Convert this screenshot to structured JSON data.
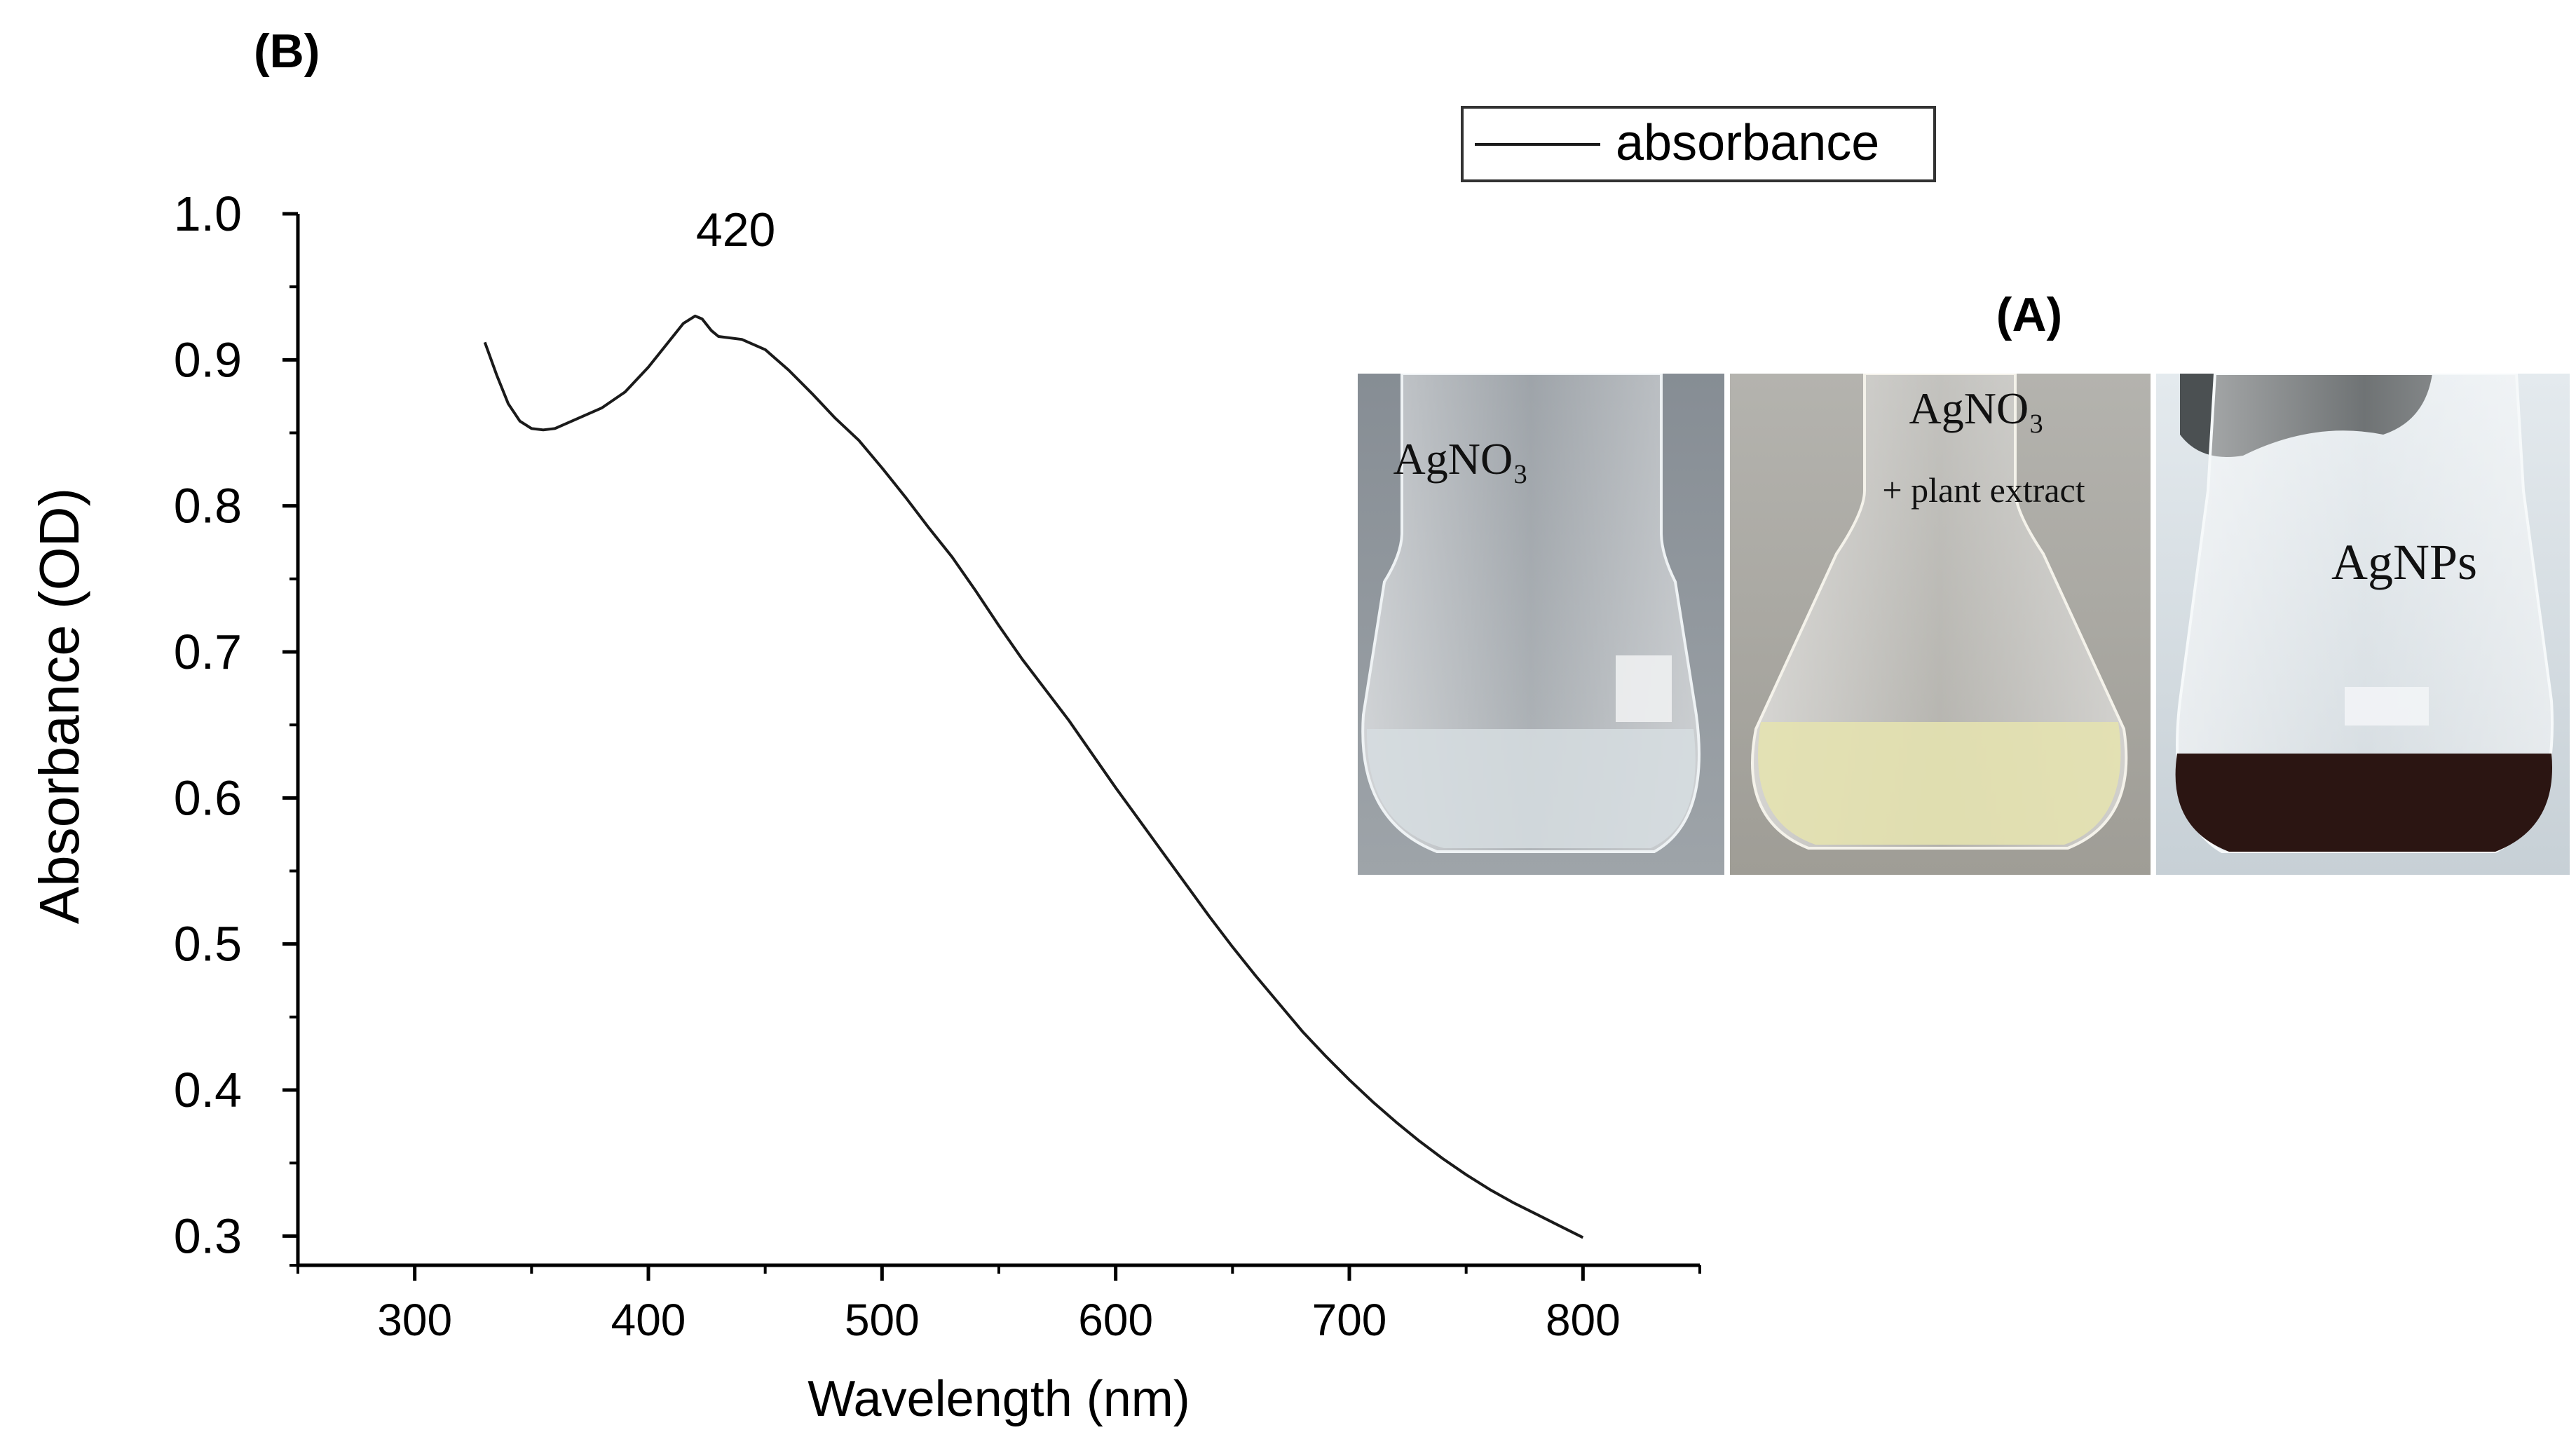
{
  "panel_b_label": "(B)",
  "panel_a_label": "(A)",
  "chart_data": {
    "type": "line",
    "title": "",
    "xlabel": "Wavelength (nm)",
    "ylabel": "Absorbance (OD)",
    "xlim": [
      250,
      850
    ],
    "ylim": [
      0.28,
      1.0
    ],
    "x_ticks": [
      300,
      400,
      500,
      600,
      700,
      800
    ],
    "y_ticks": [
      0.3,
      0.4,
      0.5,
      0.6,
      0.7,
      0.8,
      0.9,
      1.0
    ],
    "x_tick_labels": [
      "300",
      "400",
      "500",
      "600",
      "700",
      "800"
    ],
    "y_tick_labels": [
      "0.3",
      "0.4",
      "0.5",
      "0.6",
      "0.7",
      "0.8",
      "0.9",
      "1.0"
    ],
    "grid": false,
    "legend": {
      "position": "top-right",
      "entries": [
        "absorbance"
      ]
    },
    "annotations": [
      {
        "text": "420",
        "x": 420,
        "y": 0.93
      }
    ],
    "series": [
      {
        "name": "absorbance",
        "color": "#1a1a1a",
        "x": [
          330,
          335,
          340,
          345,
          350,
          355,
          360,
          370,
          380,
          390,
          400,
          410,
          415,
          420,
          423,
          427,
          430,
          440,
          450,
          460,
          470,
          480,
          490,
          500,
          510,
          520,
          530,
          540,
          550,
          560,
          570,
          580,
          590,
          600,
          610,
          620,
          630,
          640,
          650,
          660,
          670,
          680,
          690,
          700,
          710,
          720,
          730,
          740,
          750,
          760,
          770,
          780,
          790,
          800
        ],
        "y": [
          0.912,
          0.89,
          0.87,
          0.858,
          0.853,
          0.852,
          0.853,
          0.86,
          0.867,
          0.878,
          0.895,
          0.915,
          0.925,
          0.93,
          0.928,
          0.92,
          0.916,
          0.914,
          0.907,
          0.893,
          0.877,
          0.86,
          0.845,
          0.826,
          0.806,
          0.785,
          0.765,
          0.742,
          0.718,
          0.695,
          0.674,
          0.653,
          0.63,
          0.607,
          0.585,
          0.563,
          0.541,
          0.519,
          0.498,
          0.478,
          0.459,
          0.44,
          0.423,
          0.407,
          0.392,
          0.378,
          0.365,
          0.353,
          0.342,
          0.332,
          0.323,
          0.315,
          0.307,
          0.299
        ]
      }
    ]
  },
  "photos": [
    {
      "label": "AgNO₃",
      "sublabel": "",
      "background": "#8e959c",
      "liquid": "#d6dde1"
    },
    {
      "label": "AgNO₃",
      "sublabel": "+ plant extract",
      "background": "#a9a9a6",
      "liquid": "#e4e2b0"
    },
    {
      "label": "AgNPs",
      "sublabel": "",
      "background": "#d5dde2",
      "liquid": "#2b1512"
    }
  ]
}
